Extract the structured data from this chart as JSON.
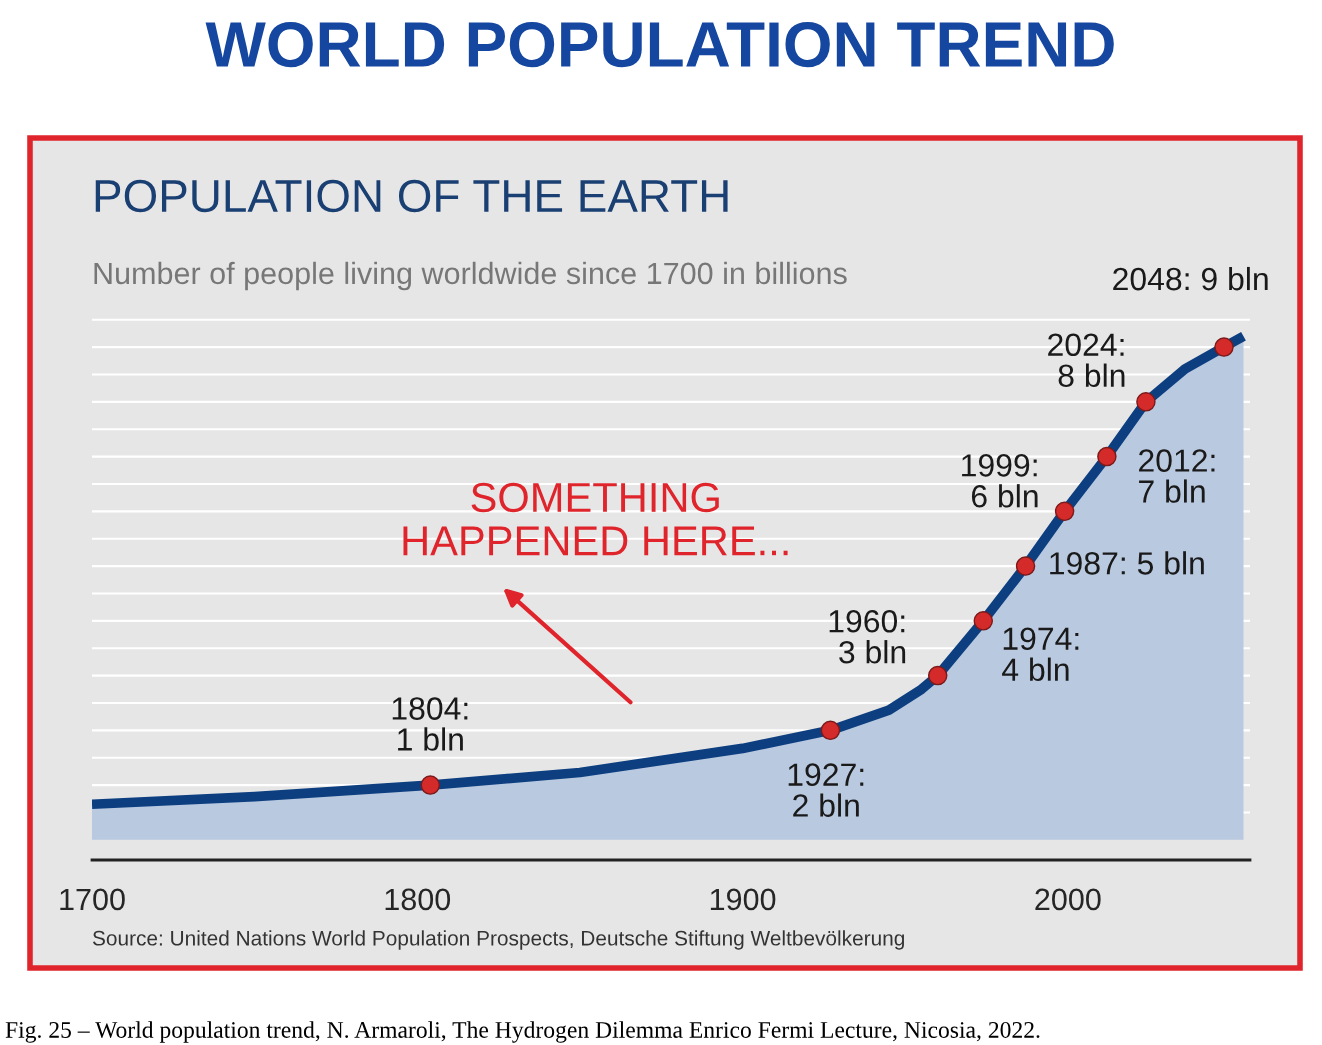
{
  "chart_data": {
    "type": "area",
    "title": "WORLD POPULATION TREND",
    "subtitle": "POPULATION OF THE EARTH",
    "ylabel": "Number of people living worldwide since 1700 in billions",
    "annotations": [
      "SOMETHING HAPPENED HERE...",
      "Source: United Nations World Population Prospects, Deutsche Stiftung Weltbevölkerung",
      "Fig. 25 – World population trend, N. Armaroli, The Hydrogen Dilemma Enrico Fermi Lecture, Nicosia, 2022."
    ],
    "xlim": [
      1700,
      2056
    ],
    "xticks": [
      1700,
      1800,
      1900,
      2000
    ],
    "yticks": [
      {
        "value": 0.5,
        "label": null
      },
      {
        "value": 1,
        "label": null
      },
      {
        "value": 1.5,
        "label": null
      },
      {
        "value": 2,
        "label": null
      },
      {
        "value": 2.5,
        "label": null
      },
      {
        "value": 3,
        "label": null
      },
      {
        "value": 3.5,
        "label": null
      },
      {
        "value": 4,
        "label": null
      },
      {
        "value": 4.5,
        "label": null
      },
      {
        "value": 5,
        "label": null
      },
      {
        "value": 5.5,
        "label": null
      },
      {
        "value": 6,
        "label": null
      },
      {
        "value": 6.5,
        "label": null
      },
      {
        "value": 7,
        "label": null
      },
      {
        "value": 7.5,
        "label": null
      },
      {
        "value": 8,
        "label": null
      },
      {
        "value": 8.5,
        "label": null
      },
      {
        "value": 9,
        "label": null
      },
      {
        "value": 9.5,
        "label": null
      }
    ],
    "grid": "y",
    "tick_labels": "x",
    "series": [
      {
        "color": "#0d3f80",
        "x": [
          1700,
          1750,
          1804,
          1850,
          1900,
          1927,
          1945,
          1955,
          1960,
          1974,
          1987,
          1999,
          2012,
          2024,
          2036,
          2048,
          2054
        ],
        "values": [
          0.65,
          0.79,
          1,
          1.23,
          1.67,
          2,
          2.37,
          2.75,
          3,
          4,
          5,
          6,
          7,
          8,
          8.6,
          9,
          9.2
        ]
      },
      {
        "type": "scatter",
        "color": "#d42a2a",
        "marker": "circle",
        "x": [
          1804,
          1927,
          1960,
          1974,
          1987,
          1999,
          2012,
          2024,
          2048
        ],
        "values": [
          1,
          2,
          3,
          4,
          5,
          6,
          7,
          8,
          9
        ],
        "value_labels": [
          "1804: 1 bln",
          "1927: 2 bln",
          "1960: 3 bln",
          "1974: 4 bln",
          "1987: 5 bln",
          "1999: 6 bln",
          "2012: 7 bln",
          "2024: 8 bln",
          "2048: 9 bln"
        ]
      }
    ]
  }
}
